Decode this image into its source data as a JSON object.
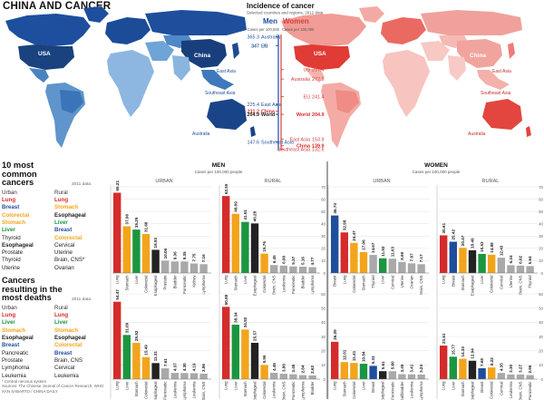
{
  "title": "CHINA AND CANCER",
  "incidence": {
    "title": "Incidence of cancer",
    "subtitle": "Selected countries and regions, 2012 data",
    "men_label": "Men",
    "women_label": "Women",
    "men_unit": "Cases per 100,000",
    "women_unit": "Cases per 100,000",
    "men": [
      {
        "region": "Australia",
        "value": "365.3"
      },
      {
        "region": "US",
        "value": "347"
      },
      {
        "region": "EU",
        "value": "347"
      },
      {
        "region": "East Asia",
        "value": "225.4"
      },
      {
        "region": "China",
        "value": "211.2"
      },
      {
        "region": "World",
        "value": "204.9"
      },
      {
        "region": "Southeast Asia",
        "value": "147.6"
      }
    ],
    "women": [
      {
        "region": "US",
        "value": "297.4"
      },
      {
        "region": "Australia",
        "value": "277.9"
      },
      {
        "region": "EU",
        "value": "241.4"
      },
      {
        "region": "World",
        "value": "204.9"
      },
      {
        "region": "East Asia",
        "value": "153.9"
      },
      {
        "region": "China",
        "value": "139.9"
      },
      {
        "region": "Southeast Asia",
        "value": "132.6"
      }
    ],
    "colors": {
      "men": "#1f4e9c",
      "women": "#d63d3d",
      "china": "#d52b2b",
      "world": "#1a1a1a"
    }
  },
  "map_men": {
    "labels": [
      "USA",
      "China",
      "East Asia",
      "Southeast Asia",
      "Australia"
    ],
    "fill": "#1f4e9c",
    "light": "#9fc2e2"
  },
  "map_women": {
    "labels": [
      "USA",
      "China",
      "East Asia",
      "Southeast Asia",
      "Australia"
    ],
    "fill": "#e8463c",
    "light": "#f6b6b0"
  },
  "common": {
    "title": "10 most common cancers",
    "note": "2011 data",
    "head": [
      "Urban",
      "Rural"
    ],
    "rows": [
      [
        "Lung",
        "Lung"
      ],
      [
        "Breast",
        "Stomach"
      ],
      [
        "Colorectal",
        "Esophageal"
      ],
      [
        "Stomach",
        "Liver"
      ],
      [
        "Liver",
        "Breast"
      ],
      [
        "Thyroid",
        "Colorectal"
      ],
      [
        "Esophageal",
        "Cervical"
      ],
      [
        "Prostate",
        "Uterine"
      ],
      [
        "Thyroid",
        "Brain, CNS*"
      ],
      [
        "Uterine",
        "Ovarian"
      ]
    ]
  },
  "deaths": {
    "title": "Cancers resulting in the most deaths",
    "note": "2011 data",
    "head": [
      "Urban",
      "Rural"
    ],
    "rows": [
      [
        "Lung",
        "Lung"
      ],
      [
        "Liver",
        "Liver"
      ],
      [
        "Stomach",
        "Stomach"
      ],
      [
        "Esophageal",
        "Esophageal"
      ],
      [
        "Breast",
        "Colorectal"
      ],
      [
        "Pancreatic",
        "Breast"
      ],
      [
        "Prostate",
        "Brain, CNS"
      ],
      [
        "Lymphoma",
        "Cervical"
      ],
      [
        "Leukemia",
        "Leukemia"
      ]
    ]
  },
  "row_colors": {
    "Lung": "#d52b2b",
    "Breast": "#1f4e9c",
    "Stomach": "#f2a51c",
    "Liver": "#1b9640",
    "Colorectal": "#f2a51c",
    "Esophageal": "#222222"
  },
  "footnote": [
    "* Central nervous system",
    "Sources: The Chinese Journal of Cancer Research, WHO",
    "XAN SABARTO / CHINA DAILY"
  ],
  "chart": {
    "men_label": "MEN",
    "women_label": "WOMEN",
    "unit": "Cases per 100,000 people",
    "urban_label": "URBAN",
    "rural_label": "RURAL",
    "top_max": 70,
    "bottom_max": 60,
    "top_ticks": [
      "70",
      "60",
      "50",
      "40",
      "30",
      "20",
      "10",
      "0"
    ],
    "bottom_ticks": [
      "60",
      "50",
      "40",
      "30",
      "20",
      "10",
      "0"
    ],
    "top": [
      {
        "bars": [
          {
            "c": "Lung",
            "v": 65.21,
            "t": "65.21"
          },
          {
            "c": "Stomach",
            "v": 37.96,
            "t": "37.96"
          },
          {
            "c": "Liver",
            "v": 35.29,
            "t": "35.29"
          },
          {
            "c": "Colorectal",
            "v": 31.66,
            "t": "31.66"
          },
          {
            "c": "Esophageal",
            "v": 18.83,
            "t": "18.83"
          },
          {
            "c": "Prostate",
            "v": 10.06,
            "t": "10.06"
          },
          {
            "c": "Bladder",
            "v": 9.36,
            "t": "9.36"
          },
          {
            "c": "Pancreatic",
            "v": 9.35,
            "t": "9.35"
          },
          {
            "c": "Kidney",
            "v": 7.75,
            "t": "7.75"
          },
          {
            "c": "Lymphoma",
            "v": 7.16,
            "t": "7.16"
          }
        ]
      },
      {
        "bars": [
          {
            "c": "Lung",
            "v": 62.55,
            "t": "62.55"
          },
          {
            "c": "Stomach",
            "v": 48.09,
            "t": "48.09"
          },
          {
            "c": "Liver",
            "v": 41.51,
            "t": "41.51"
          },
          {
            "c": "Esophageal",
            "v": 40.28,
            "t": "40.28"
          },
          {
            "c": "Colorectal",
            "v": 15.76,
            "t": "15.76"
          },
          {
            "c": "Brain, CNS",
            "v": 6.45,
            "t": "6.45"
          },
          {
            "c": "Leukemia",
            "v": 6.0,
            "t": "6.00"
          },
          {
            "c": "Pancreatic",
            "v": 5.37,
            "t": "5.37"
          },
          {
            "c": "Bladder",
            "v": 5.16,
            "t": "5.16"
          },
          {
            "c": "Lymphoma",
            "v": 4.77,
            "t": "4.77"
          }
        ]
      },
      {
        "bars": [
          {
            "c": "Breast",
            "v": 46.74,
            "t": "46.74"
          },
          {
            "c": "Lung",
            "v": 32.98,
            "t": "32.98"
          },
          {
            "c": "Colorectal",
            "v": 24.47,
            "t": "24.47"
          },
          {
            "c": "Stomach",
            "v": 17.06,
            "t": "17.06"
          },
          {
            "c": "Thyroid",
            "v": 14.67,
            "t": "14.67"
          },
          {
            "c": "Liver",
            "v": 11.93,
            "t": "11.93"
          },
          {
            "c": "Cervical",
            "v": 11.63,
            "t": "11.63"
          },
          {
            "c": "Uterine",
            "v": 8.99,
            "t": "8.99"
          },
          {
            "c": "Ovarian",
            "v": 7.87,
            "t": "7.87"
          },
          {
            "c": "Brain, CNS",
            "v": 7.17,
            "t": "7.17"
          }
        ]
      },
      {
        "bars": [
          {
            "c": "Lung",
            "v": 30.61,
            "t": "30.61"
          },
          {
            "c": "Breast",
            "v": 25.42,
            "t": "25.42"
          },
          {
            "c": "Stomach",
            "v": 20.47,
            "t": "20.47"
          },
          {
            "c": "Esophageal",
            "v": 18.49,
            "t": "18.49"
          },
          {
            "c": "Liver",
            "v": 15.53,
            "t": "15.53"
          },
          {
            "c": "Colorectal",
            "v": 14.88,
            "t": "14.88"
          },
          {
            "c": "Cervical",
            "v": 12.43,
            "t": "12.43"
          },
          {
            "c": "Uterine",
            "v": 6.34,
            "t": "6.34"
          },
          {
            "c": "Brain, CNS",
            "v": 6.02,
            "t": "6.02"
          },
          {
            "c": "Thyroid",
            "v": 5.64,
            "t": "5.64"
          }
        ]
      }
    ],
    "bottom": [
      {
        "bars": [
          {
            "c": "Lung",
            "v": 54.47,
            "t": "54.47"
          },
          {
            "c": "Liver",
            "v": 31.09,
            "t": "31.09"
          },
          {
            "c": "Stomach",
            "v": 25.52,
            "t": "25.52"
          },
          {
            "c": "Colorectal",
            "v": 15.49,
            "t": "15.49"
          },
          {
            "c": "Esophageal",
            "v": 11.31,
            "t": "11.31"
          },
          {
            "c": "Pancreatic",
            "v": 7.61,
            "t": "7.61"
          },
          {
            "c": "Leukemia",
            "v": 4.37,
            "t": "4.37"
          },
          {
            "c": "Lymphoma",
            "v": 4.3,
            "t": "4.30"
          },
          {
            "c": "Leukemia",
            "v": 4.19,
            "t": "4.19"
          },
          {
            "c": "Brain, CNS",
            "v": 3.86,
            "t": "3.86"
          }
        ]
      },
      {
        "bars": [
          {
            "c": "Lung",
            "v": 50.88,
            "t": "50.88"
          },
          {
            "c": "Liver",
            "v": 38.34,
            "t": "38.34"
          },
          {
            "c": "Stomach",
            "v": 34.92,
            "t": "34.92"
          },
          {
            "c": "Esophageal",
            "v": 25.57,
            "t": "25.57"
          },
          {
            "c": "Colorectal",
            "v": 9.96,
            "t": "9.96"
          },
          {
            "c": "Leukemia",
            "v": 4.46,
            "t": "4.46"
          },
          {
            "c": "Brain, CNS",
            "v": 3.8,
            "t": "3.80"
          },
          {
            "c": "Pancreatic",
            "v": 3.45,
            "t": "3.45"
          },
          {
            "c": "Lymphoma",
            "v": 2.84,
            "t": "2.84"
          },
          {
            "c": "Bladder",
            "v": 2.62,
            "t": "2.62"
          }
        ]
      },
      {
        "bars": [
          {
            "c": "Lung",
            "v": 26.29,
            "t": "26.29"
          },
          {
            "c": "Stomach",
            "v": 12.01,
            "t": "12.01"
          },
          {
            "c": "Colorectal",
            "v": 11.41,
            "t": "11.41"
          },
          {
            "c": "Liver",
            "v": 10.84,
            "t": "10.84"
          },
          {
            "c": "Breast",
            "v": 9.33,
            "t": "9.33"
          },
          {
            "c": "Esophageal",
            "v": 5.61,
            "t": "5.61"
          },
          {
            "c": "Pancreatic",
            "v": 5.6,
            "t": "5.60"
          },
          {
            "c": "Gallbladder",
            "v": 3.49,
            "t": "3.49"
          },
          {
            "c": "Leukemia",
            "v": 3.41,
            "t": "3.41"
          },
          {
            "c": "Lymphoma",
            "v": 3.24,
            "t": "3.24"
          }
        ]
      },
      {
        "bars": [
          {
            "c": "Lung",
            "v": 23.61,
            "t": "23.61"
          },
          {
            "c": "Liver",
            "v": 15.77,
            "t": "15.77"
          },
          {
            "c": "Stomach",
            "v": 14.33,
            "t": "14.33"
          },
          {
            "c": "Esophageal",
            "v": 12.94,
            "t": "12.94"
          },
          {
            "c": "Breast",
            "v": 7.68,
            "t": "7.68"
          },
          {
            "c": "Colorectal",
            "v": 8.22,
            "t": "8.22"
          },
          {
            "c": "Cervical",
            "v": 4.35,
            "t": "4.35"
          },
          {
            "c": "Leukemia",
            "v": 3.3,
            "t": "3.30"
          },
          {
            "c": "Brain, CNS",
            "v": 3.27,
            "t": "3.27"
          },
          {
            "c": "Pancreatic",
            "v": 2.86,
            "t": "2.86"
          }
        ]
      }
    ]
  }
}
